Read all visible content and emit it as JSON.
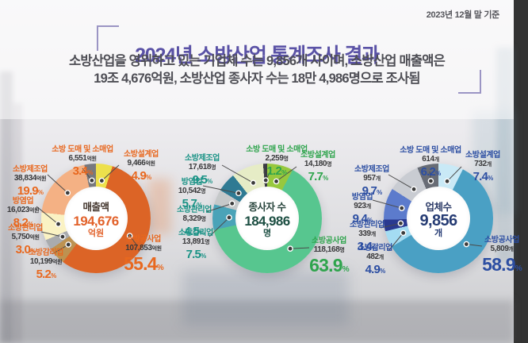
{
  "meta": {
    "asof": "2023년 12월 말 기준",
    "percent_sign": "%"
  },
  "header": {
    "title": "2024년 소방산업 통계조사 결과",
    "title_color": "#5a52a6",
    "subtitle_line1": "소방산업을 영위하고 있는 기업체 수는 9,856개 사이며, 소방산업 매출액은",
    "subtitle_line2": "19조 4,676억원, 소방산업 종사자 수는 18만 4,986명으로 조사됨"
  },
  "chart_data": [
    {
      "type": "donut",
      "title": "매출액",
      "center": {
        "label": "매출액",
        "value": "194,676",
        "unit": "억원"
      },
      "center_colors": {
        "label": "#43362e",
        "value": "#e2622b",
        "unit": "#e2622b"
      },
      "accent": "#e8681f",
      "unit": "억원",
      "categories": [
        "소방설계업",
        "소방공사업",
        "소방감리업",
        "소방관리업",
        "방염업",
        "소방제조업",
        "소방 도매 및 소매업"
      ],
      "values": [
        4.9,
        55.4,
        5.2,
        3.0,
        8.2,
        19.9,
        3.4
      ],
      "amounts": [
        9466,
        107853,
        10199,
        5750,
        16023,
        38834,
        6551
      ],
      "slices": [
        {
          "name": "소방설계업",
          "amount": "9,466",
          "unit": "억원",
          "pct_label": "4.9",
          "color": "#ede04c",
          "label_color": "#e8681f"
        },
        {
          "name": "소방공사업",
          "amount": "107,853",
          "unit": "억원",
          "pct_label": "55.4",
          "color": "#dc6426",
          "label_color": "#e8681f"
        },
        {
          "name": "소방감리업",
          "amount": "10,199",
          "unit": "억원",
          "pct_label": "5.2",
          "color": "#bd9251",
          "label_color": "#e8681f"
        },
        {
          "name": "소방관리업",
          "amount": "5,750",
          "unit": "억원",
          "pct_label": "3.0",
          "color": "#a9abae",
          "label_color": "#e8681f"
        },
        {
          "name": "방염업",
          "amount": "16,023",
          "unit": "억원",
          "pct_label": "8.2",
          "color": "#faf2c3",
          "label_color": "#e8681f"
        },
        {
          "name": "소방제조업",
          "amount": "38,834",
          "unit": "억원",
          "pct_label": "19.9",
          "color": "#f4b184",
          "label_color": "#e8681f"
        },
        {
          "name": "소방 도매 및 소매업",
          "amount": "6,551",
          "unit": "억원",
          "pct_label": "3.4",
          "color": "#77787d",
          "label_color": "#e8681f"
        }
      ]
    },
    {
      "type": "donut",
      "title": "종사자 수",
      "center": {
        "label": "종사자 수",
        "value": "184,986",
        "unit": "명"
      },
      "center_colors": {
        "label": "#27433b",
        "value": "#1d4f43",
        "unit": "#1d4f43"
      },
      "accent": "#2fa44d",
      "unit": "명",
      "categories": [
        "소방설계업",
        "소방공사업",
        "소방감리업",
        "소방관리업",
        "방염업",
        "소방제조업",
        "소방 도매 및 소매업"
      ],
      "values": [
        7.7,
        63.9,
        7.5,
        4.5,
        5.7,
        9.5,
        1.2
      ],
      "amounts": [
        14180,
        118168,
        13891,
        8329,
        10542,
        17618,
        2259
      ],
      "slices": [
        {
          "name": "소방설계업",
          "amount": "14,180",
          "unit": "명",
          "pct_label": "7.7",
          "color": "#97c83e",
          "label_color": "#2fa44d"
        },
        {
          "name": "소방공사업",
          "amount": "118,168",
          "unit": "명",
          "pct_label": "63.9",
          "color": "#57c68f",
          "label_color": "#2fa44d"
        },
        {
          "name": "소방감리업",
          "amount": "13,891",
          "unit": "명",
          "pct_label": "7.5",
          "color": "#4aa3b8",
          "label_color": "#1b9386"
        },
        {
          "name": "소방관리업",
          "amount": "8,329",
          "unit": "명",
          "pct_label": "4.5",
          "color": "#c5c8c9",
          "label_color": "#1b9386"
        },
        {
          "name": "방염업",
          "amount": "10,542",
          "unit": "명",
          "pct_label": "5.7",
          "color": "#2f7a93",
          "label_color": "#1b9386"
        },
        {
          "name": "소방제조업",
          "amount": "17,618",
          "unit": "명",
          "pct_label": "9.5",
          "color": "#e6ecc6",
          "label_color": "#1b9386"
        },
        {
          "name": "소방 도매 및 소매업",
          "amount": "2,259",
          "unit": "명",
          "pct_label": "1.2",
          "color": "#3c3c44",
          "label_color": "#2fa44d"
        }
      ]
    },
    {
      "type": "donut",
      "title": "업체수",
      "center": {
        "label": "업체수",
        "value": "9,856",
        "unit": "개"
      },
      "center_colors": {
        "label": "#2b3a66",
        "value": "#263c74",
        "unit": "#263c74"
      },
      "accent": "#2c4ea2",
      "unit": "개",
      "categories": [
        "소방설계업",
        "소방공사업",
        "소방감리업",
        "소방관리업",
        "방염업",
        "소방제조업",
        "소방 도매 및 소매업"
      ],
      "values": [
        7.4,
        58.9,
        4.9,
        3.4,
        9.4,
        9.7,
        6.2
      ],
      "amounts": [
        732,
        5809,
        482,
        339,
        923,
        957,
        614
      ],
      "slices": [
        {
          "name": "소방설계업",
          "amount": "732",
          "unit": "개",
          "pct_label": "7.4",
          "color": "#c9e9f6",
          "label_color": "#2c4ea2"
        },
        {
          "name": "소방공사업",
          "amount": "5,809",
          "unit": "개",
          "pct_label": "58.9",
          "color": "#4aa0c4",
          "label_color": "#2c4ea2"
        },
        {
          "name": "소방감리업",
          "amount": "482",
          "unit": "개",
          "pct_label": "4.9",
          "color": "#a4dcf2",
          "label_color": "#2c4ea2"
        },
        {
          "name": "소방관리업",
          "amount": "339",
          "unit": "개",
          "pct_label": "3.4",
          "color": "#2a3a90",
          "label_color": "#2c4ea2"
        },
        {
          "name": "방염업",
          "amount": "923",
          "unit": "개",
          "pct_label": "9.4",
          "color": "#5c7bcc",
          "label_color": "#2c4ea2"
        },
        {
          "name": "소방제조업",
          "amount": "957",
          "unit": "개",
          "pct_label": "9.7",
          "color": "#c9ccd2",
          "label_color": "#2c4ea2"
        },
        {
          "name": "소방 도매 및 소매업",
          "amount": "614",
          "unit": "개",
          "pct_label": "6.2",
          "color": "#686c75",
          "label_color": "#2c4ea2"
        }
      ]
    }
  ]
}
